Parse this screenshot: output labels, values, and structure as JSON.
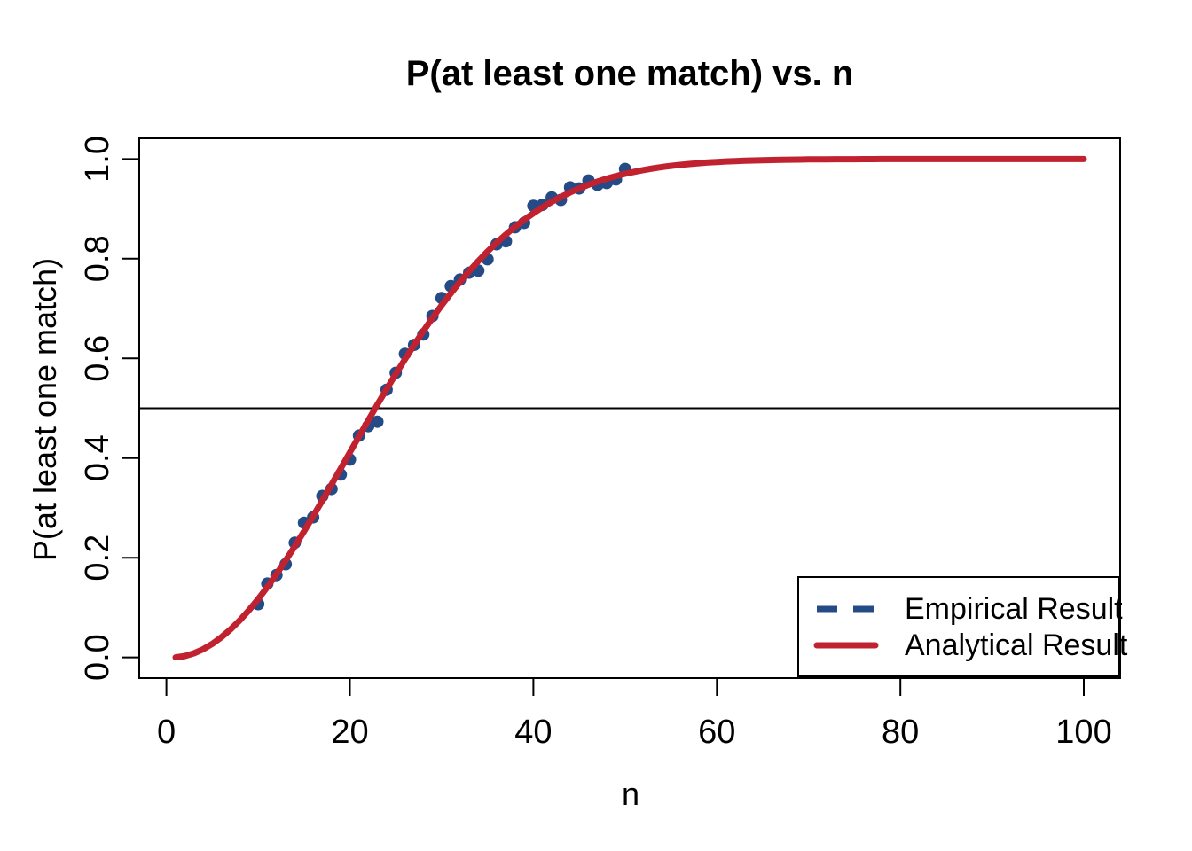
{
  "chart_data": {
    "type": "line",
    "title": "P(at least one match) vs. n",
    "xlabel": "n",
    "ylabel": "P(at least one match)",
    "xlim": [
      -2.96,
      103.96
    ],
    "ylim": [
      -0.0416,
      1.0416
    ],
    "x_ticks": [
      0,
      20,
      40,
      60,
      80,
      100
    ],
    "y_ticks": [
      0,
      0.2,
      0.4,
      0.6,
      0.8,
      1.0
    ],
    "y_tick_labels": [
      "0.0",
      "0.2",
      "0.4",
      "0.6",
      "0.8",
      "1.0"
    ],
    "grid": false,
    "reference_line_y": 0.5,
    "frame_color": "#000000",
    "background": "#FFFFFF",
    "legend": {
      "position": "bottomright",
      "entries": [
        {
          "label": "Empirical Result",
          "color": "#254B86",
          "style": "dashed"
        },
        {
          "label": "Analytical Result",
          "color": "#C1222F",
          "style": "solid"
        }
      ]
    },
    "series": [
      {
        "name": "Empirical Result",
        "draw": "points",
        "color": "#254B86",
        "point_radius": 7,
        "x": [
          10,
          11,
          12,
          13,
          14,
          15,
          16,
          17,
          18,
          19,
          20,
          21,
          22,
          23,
          24,
          25,
          26,
          27,
          28,
          29,
          30,
          31,
          32,
          33,
          34,
          35,
          36,
          37,
          38,
          39,
          40,
          41,
          42,
          43,
          44,
          45,
          46,
          47,
          48,
          49,
          50
        ],
        "y": [
          0.107,
          0.148,
          0.165,
          0.187,
          0.23,
          0.27,
          0.281,
          0.324,
          0.338,
          0.367,
          0.397,
          0.445,
          0.464,
          0.473,
          0.537,
          0.571,
          0.609,
          0.627,
          0.648,
          0.685,
          0.721,
          0.745,
          0.758,
          0.772,
          0.776,
          0.799,
          0.829,
          0.835,
          0.863,
          0.872,
          0.906,
          0.908,
          0.923,
          0.918,
          0.943,
          0.941,
          0.957,
          0.948,
          0.952,
          0.959,
          0.98
        ]
      },
      {
        "name": "Analytical Result",
        "draw": "line",
        "color": "#C1222F",
        "line_width": 7,
        "x": [
          1,
          2,
          3,
          4,
          5,
          6,
          7,
          8,
          9,
          10,
          11,
          12,
          13,
          14,
          15,
          16,
          17,
          18,
          19,
          20,
          21,
          22,
          23,
          24,
          25,
          26,
          27,
          28,
          29,
          30,
          31,
          32,
          33,
          34,
          35,
          36,
          37,
          38,
          39,
          40,
          41,
          42,
          43,
          44,
          45,
          46,
          47,
          48,
          49,
          50,
          51,
          52,
          53,
          54,
          55,
          56,
          57,
          58,
          59,
          60,
          61,
          62,
          63,
          64,
          65,
          66,
          67,
          68,
          69,
          70,
          71,
          72,
          73,
          74,
          75,
          76,
          77,
          78,
          79,
          80,
          81,
          82,
          83,
          84,
          85,
          86,
          87,
          88,
          89,
          90,
          91,
          92,
          93,
          94,
          95,
          96,
          97,
          98,
          99,
          100
        ],
        "y": [
          0.0,
          0.0027,
          0.0082,
          0.0164,
          0.0271,
          0.0405,
          0.0562,
          0.0743,
          0.0946,
          0.1169,
          0.1411,
          0.167,
          0.1944,
          0.2231,
          0.2529,
          0.2836,
          0.315,
          0.3469,
          0.3791,
          0.4114,
          0.4437,
          0.4757,
          0.5073,
          0.5383,
          0.5687,
          0.5982,
          0.6269,
          0.6545,
          0.681,
          0.7063,
          0.7305,
          0.7533,
          0.775,
          0.7953,
          0.8144,
          0.8322,
          0.8487,
          0.8641,
          0.8782,
          0.8912,
          0.9032,
          0.914,
          0.9239,
          0.9329,
          0.941,
          0.9483,
          0.9548,
          0.9606,
          0.9658,
          0.9704,
          0.9744,
          0.978,
          0.9811,
          0.9839,
          0.9863,
          0.9883,
          0.9901,
          0.9917,
          0.993,
          0.9941,
          0.9951,
          0.9959,
          0.9966,
          0.9972,
          0.9977,
          0.9981,
          0.9984,
          0.9987,
          0.999,
          0.9992,
          0.9993,
          0.9995,
          0.9996,
          0.9997,
          0.9997,
          0.9998,
          0.9998,
          0.9999,
          0.9999,
          0.9999,
          0.9999,
          0.9999,
          1.0,
          1.0,
          1.0,
          1.0,
          1.0,
          1.0,
          1.0,
          1.0,
          1.0,
          1.0,
          1.0,
          1.0,
          1.0,
          1.0,
          1.0,
          1.0,
          1.0,
          1.0
        ]
      }
    ]
  }
}
